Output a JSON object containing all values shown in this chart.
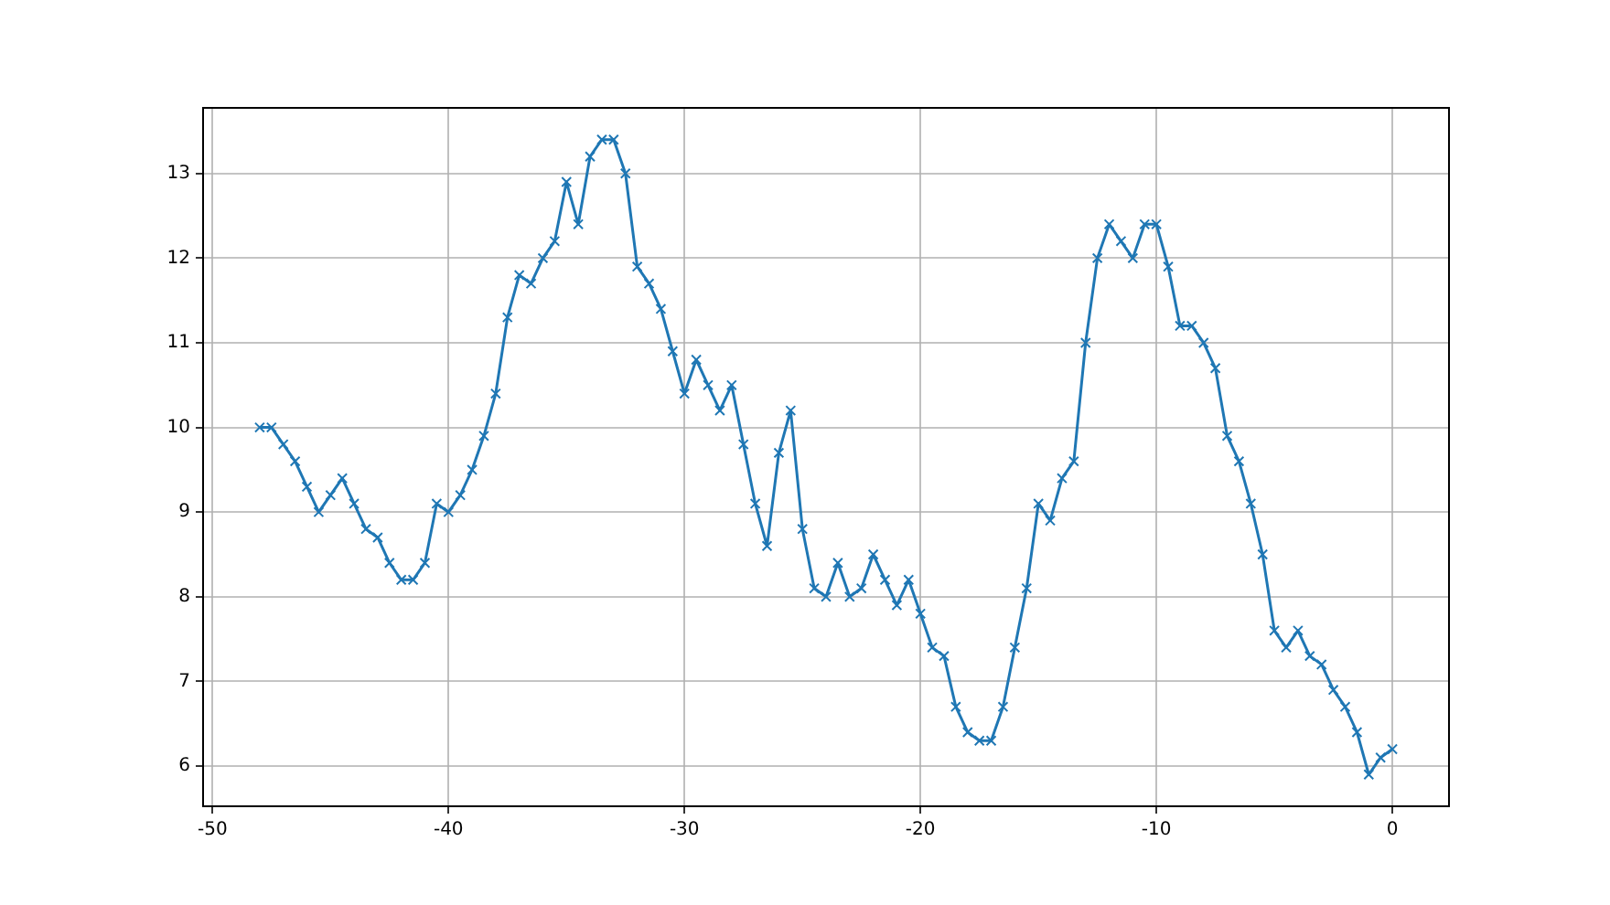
{
  "chart_data": {
    "type": "line",
    "x": [
      -48,
      -47.5,
      -47,
      -46.5,
      -46,
      -45.5,
      -45,
      -44.5,
      -44,
      -43.5,
      -43,
      -42.5,
      -42,
      -41.5,
      -41,
      -40.5,
      -40,
      -39.5,
      -39,
      -38.5,
      -38,
      -37.5,
      -37,
      -36.5,
      -36,
      -35.5,
      -35,
      -34.5,
      -34,
      -33.5,
      -33,
      -32.5,
      -32,
      -31.5,
      -31,
      -30.5,
      -30,
      -29.5,
      -29,
      -28.5,
      -28,
      -27.5,
      -27,
      -26.5,
      -26,
      -25.5,
      -25,
      -24.5,
      -24,
      -23.5,
      -23,
      -22.5,
      -22,
      -21.5,
      -21,
      -20.5,
      -20,
      -19.5,
      -19,
      -18.5,
      -18,
      -17.5,
      -17,
      -16.5,
      -16,
      -15.5,
      -15,
      -14.5,
      -14,
      -13.5,
      -13,
      -12.5,
      -12,
      -11.5,
      -11,
      -10.5,
      -10,
      -9.5,
      -9,
      -8.5,
      -8,
      -7.5,
      -7,
      -6.5,
      -6,
      -5.5,
      -5,
      -4.5,
      -4,
      -3.5,
      -3,
      -2.5,
      -2,
      -1.5,
      -1,
      -0.5,
      0
    ],
    "series": [
      {
        "color": "#1f77b4",
        "values": [
          10.0,
          10.0,
          9.8,
          9.6,
          9.3,
          9.0,
          9.2,
          9.4,
          9.1,
          8.8,
          8.7,
          8.4,
          8.2,
          8.2,
          8.4,
          9.1,
          9.0,
          9.2,
          9.5,
          9.9,
          10.4,
          11.3,
          11.8,
          11.7,
          12.0,
          12.2,
          12.9,
          12.4,
          13.2,
          13.4,
          13.4,
          13.0,
          11.9,
          11.7,
          11.4,
          10.9,
          10.4,
          10.8,
          10.5,
          10.2,
          10.5,
          9.8,
          9.1,
          8.6,
          9.7,
          10.2,
          8.8,
          8.1,
          8.0,
          8.4,
          8.0,
          8.1,
          8.5,
          8.2,
          7.9,
          8.2,
          7.8,
          7.4,
          7.3,
          6.7,
          6.4,
          6.3,
          6.3,
          6.7,
          7.4,
          8.1,
          9.1,
          8.9,
          9.4,
          9.6,
          11.0,
          12.0,
          12.4,
          12.2,
          12.0,
          12.4,
          12.4,
          11.9,
          11.2,
          11.2,
          11.0,
          10.7,
          9.9,
          9.6,
          9.1,
          8.5,
          7.6,
          7.4,
          7.6,
          7.3,
          7.2,
          6.9,
          6.7,
          6.4,
          5.9,
          6.1,
          6.2
        ]
      }
    ],
    "xlim": [
      -50.4,
      2.4
    ],
    "ylim": [
      5.525,
      13.775
    ],
    "xticks": [
      -50,
      -40,
      -30,
      -20,
      -10,
      0
    ],
    "yticks": [
      6,
      7,
      8,
      9,
      10,
      11,
      12,
      13
    ],
    "grid": true,
    "legend": false,
    "marker": "cross",
    "line_style": "solid"
  }
}
